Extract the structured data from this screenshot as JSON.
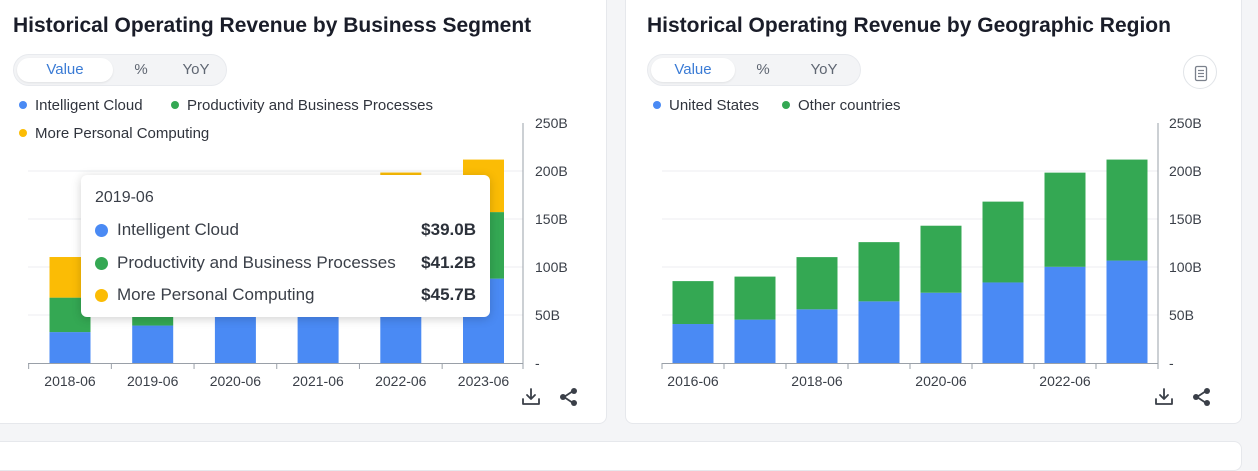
{
  "colors": {
    "cloud": "#4a8af4",
    "productivity": "#34a853",
    "personal": "#fbbc05",
    "us": "#4a8af4",
    "other": "#34a853"
  },
  "left": {
    "title": "Historical Operating Revenue by Business Segment",
    "toggle": [
      "Value",
      "%",
      "YoY"
    ],
    "legend": [
      "Intelligent Cloud",
      "Productivity and Business Processes",
      "More Personal Computing"
    ],
    "tooltip": {
      "date": "2019-06",
      "rows": [
        {
          "label": "Intelligent Cloud",
          "value": "$39.0B"
        },
        {
          "label": "Productivity and Business Processes",
          "value": "$41.2B"
        },
        {
          "label": "More Personal Computing",
          "value": "$45.7B"
        }
      ]
    }
  },
  "right": {
    "title": "Historical Operating Revenue by Geographic Region",
    "toggle": [
      "Value",
      "%",
      "YoY"
    ],
    "legend": [
      "United States",
      "Other countries"
    ]
  },
  "chart_data": [
    {
      "type": "bar",
      "stacked": true,
      "title": "Historical Operating Revenue by Business Segment",
      "categories": [
        "2018-06",
        "2019-06",
        "2020-06",
        "2021-06",
        "2022-06",
        "2023-06"
      ],
      "series": [
        {
          "name": "Intelligent Cloud",
          "values": [
            32.2,
            39.0,
            48.4,
            60.1,
            75.3,
            87.9
          ]
        },
        {
          "name": "Productivity and Business Processes",
          "values": [
            35.9,
            41.2,
            46.4,
            53.9,
            63.4,
            69.3
          ]
        },
        {
          "name": "More Personal Computing",
          "values": [
            42.3,
            45.7,
            48.3,
            54.1,
            59.7,
            54.7
          ]
        }
      ],
      "yticks": [
        "250B",
        "200B",
        "150B",
        "100B",
        "50B",
        "-"
      ],
      "ylim": [
        0,
        250
      ],
      "legend": "top-left"
    },
    {
      "type": "bar",
      "stacked": true,
      "title": "Historical Operating Revenue by Geographic Region",
      "categories": [
        "2016-06",
        "2017-06",
        "2018-06",
        "2019-06",
        "2020-06",
        "2021-06",
        "2022-06",
        "2023-06"
      ],
      "xticks": [
        "2016-06",
        "2018-06",
        "2020-06",
        "2022-06"
      ],
      "series": [
        {
          "name": "United States",
          "values": [
            40.6,
            45.2,
            55.9,
            64.2,
            73.2,
            83.9,
            100.2,
            106.7
          ]
        },
        {
          "name": "Other countries",
          "values": [
            44.7,
            44.8,
            54.4,
            61.7,
            69.8,
            84.2,
            98.1,
            105.2
          ]
        }
      ],
      "yticks": [
        "250B",
        "200B",
        "150B",
        "100B",
        "50B",
        "-"
      ],
      "ylim": [
        0,
        250
      ],
      "legend": "top-left"
    }
  ]
}
